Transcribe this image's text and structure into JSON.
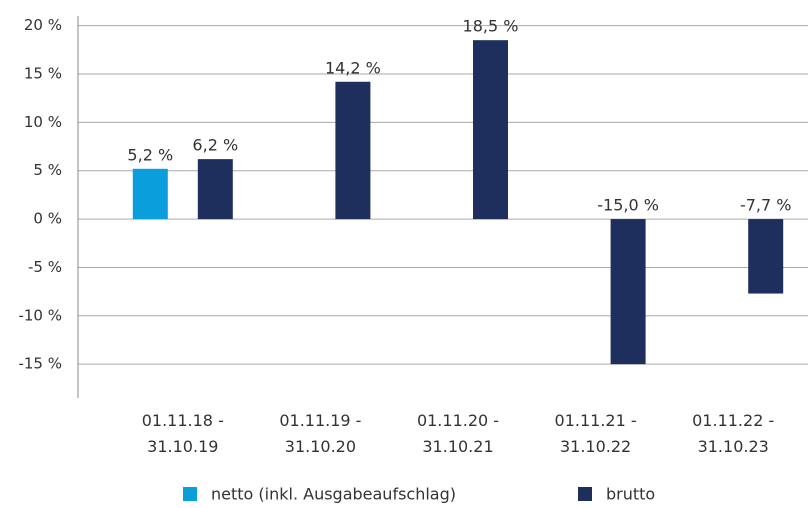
{
  "chart_data": {
    "type": "bar",
    "categories": [
      "01.11.18 -\n31.10.19",
      "01.11.19 -\n31.10.20",
      "01.11.20 -\n31.10.21",
      "01.11.21 -\n31.10.22",
      "01.11.22 -\n31.10.23"
    ],
    "series": [
      {
        "name": "netto (inkl. Ausgabeaufschlag)",
        "color": "#0a9fdc",
        "values": [
          5.2,
          null,
          null,
          null,
          null
        ],
        "value_labels": [
          "5,2 %",
          null,
          null,
          null,
          null
        ]
      },
      {
        "name": "brutto",
        "color": "#1e2f5e",
        "values": [
          6.2,
          14.2,
          18.5,
          -15.0,
          -7.7
        ],
        "value_labels": [
          "6,2 %",
          "14,2 %",
          "18,5 %",
          "-15,0 %",
          "-7,7 %"
        ]
      }
    ],
    "ylim": [
      -18.5,
      21
    ],
    "yticks": [
      {
        "value": 20,
        "label": "20 %"
      },
      {
        "value": 15,
        "label": "15 %"
      },
      {
        "value": 10,
        "label": "10 %"
      },
      {
        "value": 5,
        "label": "5 %"
      },
      {
        "value": 0,
        "label": "0 %"
      },
      {
        "value": -5,
        "label": "-5 %"
      },
      {
        "value": -10,
        "label": "-10 %"
      },
      {
        "value": -15,
        "label": "-15 %"
      }
    ],
    "grid": true
  }
}
